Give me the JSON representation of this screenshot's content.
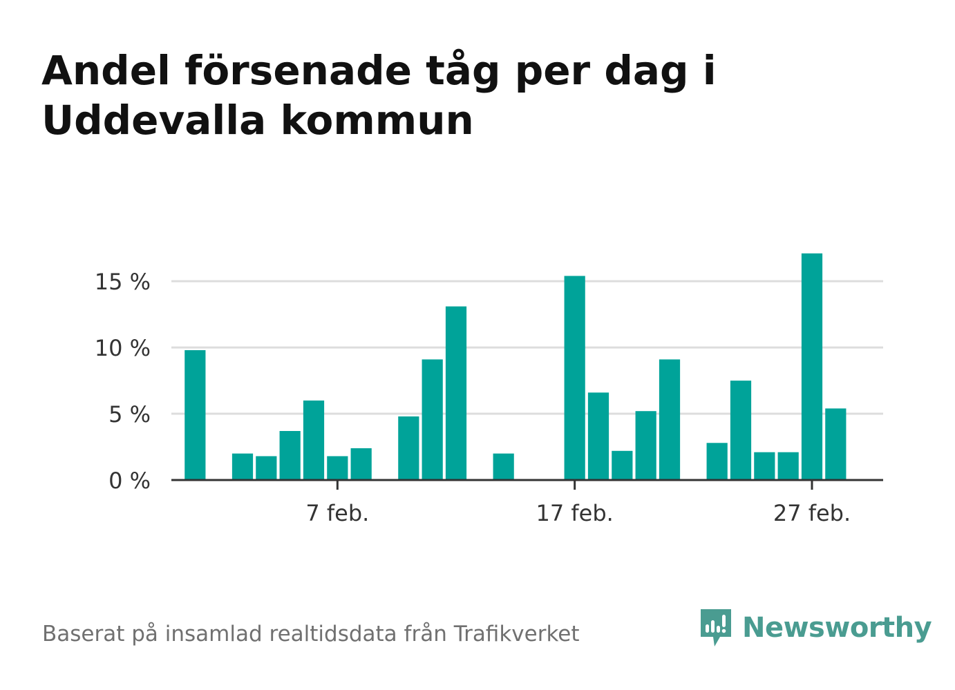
{
  "title": "Andel försenade tåg per dag i Uddevalla kommun",
  "footer": {
    "source_text": "Baserat på insamlad realtidsdata från Trafikverket",
    "brand_name": "Newsworthy"
  },
  "colors": {
    "bar": "#00a399",
    "grid": "#dddddd",
    "axis": "#333333",
    "brand": "#4a9c91"
  },
  "chart_data": {
    "type": "bar",
    "title": "Andel försenade tåg per dag i Uddevalla kommun",
    "xlabel": "",
    "ylabel": "",
    "ylim": [
      0,
      18.5
    ],
    "grid": true,
    "y_ticks": [
      0,
      5,
      10,
      15
    ],
    "y_tick_labels": [
      "0 %",
      "5 %",
      "10 %",
      "15 %"
    ],
    "x_ticks": [
      {
        "date": "2021-02-07",
        "label": "7 feb."
      },
      {
        "date": "2021-02-17",
        "label": "17 feb."
      },
      {
        "date": "2021-02-27",
        "label": "27 feb."
      }
    ],
    "x_range": [
      "2021-01-31",
      "2021-03-02"
    ],
    "series": [
      {
        "values": [
          {
            "date": "2021-02-01",
            "value": 9.8
          },
          {
            "date": "2021-02-03",
            "value": 2.0
          },
          {
            "date": "2021-02-04",
            "value": 1.8
          },
          {
            "date": "2021-02-05",
            "value": 3.7
          },
          {
            "date": "2021-02-06",
            "value": 6.0
          },
          {
            "date": "2021-02-07",
            "value": 1.8
          },
          {
            "date": "2021-02-08",
            "value": 2.4
          },
          {
            "date": "2021-02-10",
            "value": 4.8
          },
          {
            "date": "2021-02-11",
            "value": 9.1
          },
          {
            "date": "2021-02-12",
            "value": 13.1
          },
          {
            "date": "2021-02-14",
            "value": 2.0
          },
          {
            "date": "2021-02-17",
            "value": 15.4
          },
          {
            "date": "2021-02-18",
            "value": 6.6
          },
          {
            "date": "2021-02-19",
            "value": 2.2
          },
          {
            "date": "2021-02-20",
            "value": 5.2
          },
          {
            "date": "2021-02-21",
            "value": 9.1
          },
          {
            "date": "2021-02-23",
            "value": 2.8
          },
          {
            "date": "2021-02-24",
            "value": 7.5
          },
          {
            "date": "2021-02-25",
            "value": 2.1
          },
          {
            "date": "2021-02-26",
            "value": 2.1
          },
          {
            "date": "2021-02-27",
            "value": 17.1
          },
          {
            "date": "2021-02-28",
            "value": 5.4
          }
        ]
      }
    ]
  }
}
